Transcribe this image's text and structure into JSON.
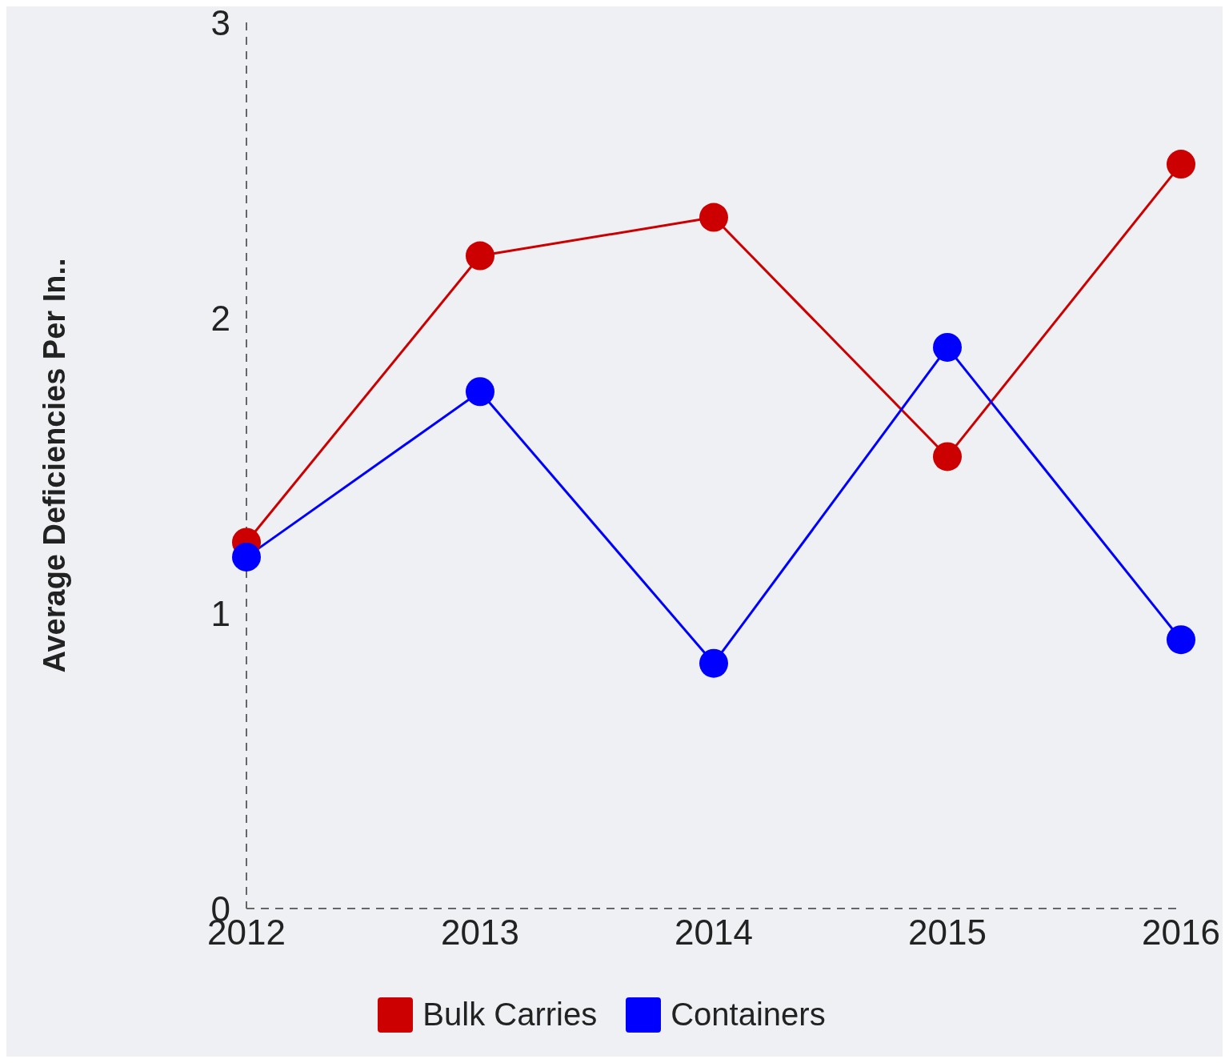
{
  "chart_data": {
    "type": "line",
    "ylabel": "Average Deficiencies Per In..",
    "categories": [
      "2012",
      "2013",
      "2014",
      "2015",
      "2016"
    ],
    "series": [
      {
        "name": "Bulk Carries",
        "color": "#cc0000",
        "values": [
          1.24,
          2.21,
          2.34,
          1.53,
          2.52
        ]
      },
      {
        "name": "Containers",
        "color": "#0000ff",
        "values": [
          1.19,
          1.75,
          0.83,
          1.9,
          0.91
        ]
      }
    ],
    "ylim": [
      0,
      3
    ],
    "yticks": [
      0,
      1,
      2,
      3
    ],
    "grid": false,
    "legend": "bottom",
    "marker": "circle",
    "line_style": "solid"
  }
}
